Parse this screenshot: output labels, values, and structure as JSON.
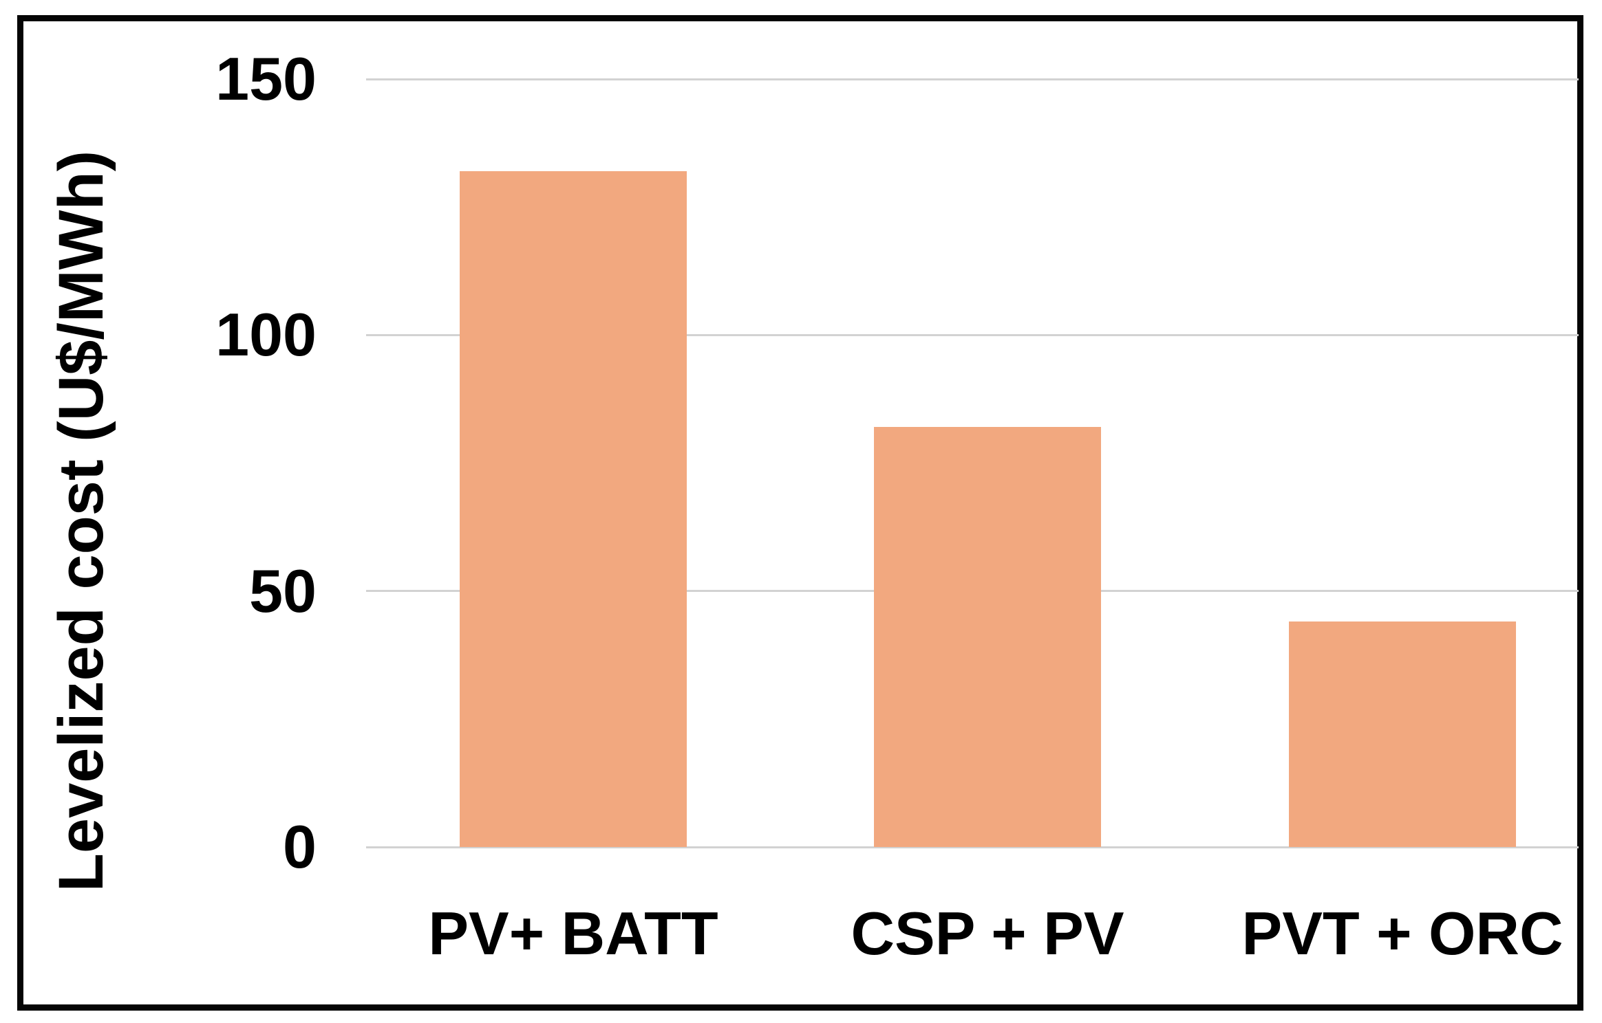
{
  "figure": {
    "background_color": "#FFFFFF",
    "frame_color": "#050505"
  },
  "chart_data": {
    "type": "bar",
    "title": "",
    "categories": [
      "PV+ BATT",
      "CSP + PV",
      "PVT + ORC"
    ],
    "values": [
      132,
      82,
      44
    ],
    "xlabel": "",
    "ylabel": "Levelized cost (U$/MWh)",
    "yticks": [
      0,
      50,
      100,
      150
    ],
    "ylim": [
      0,
      150
    ],
    "grid": true,
    "legend_position": "none",
    "bar_color": "#F2A87F",
    "gridline_color": "#D2D2D2",
    "text_color": "#000000"
  }
}
